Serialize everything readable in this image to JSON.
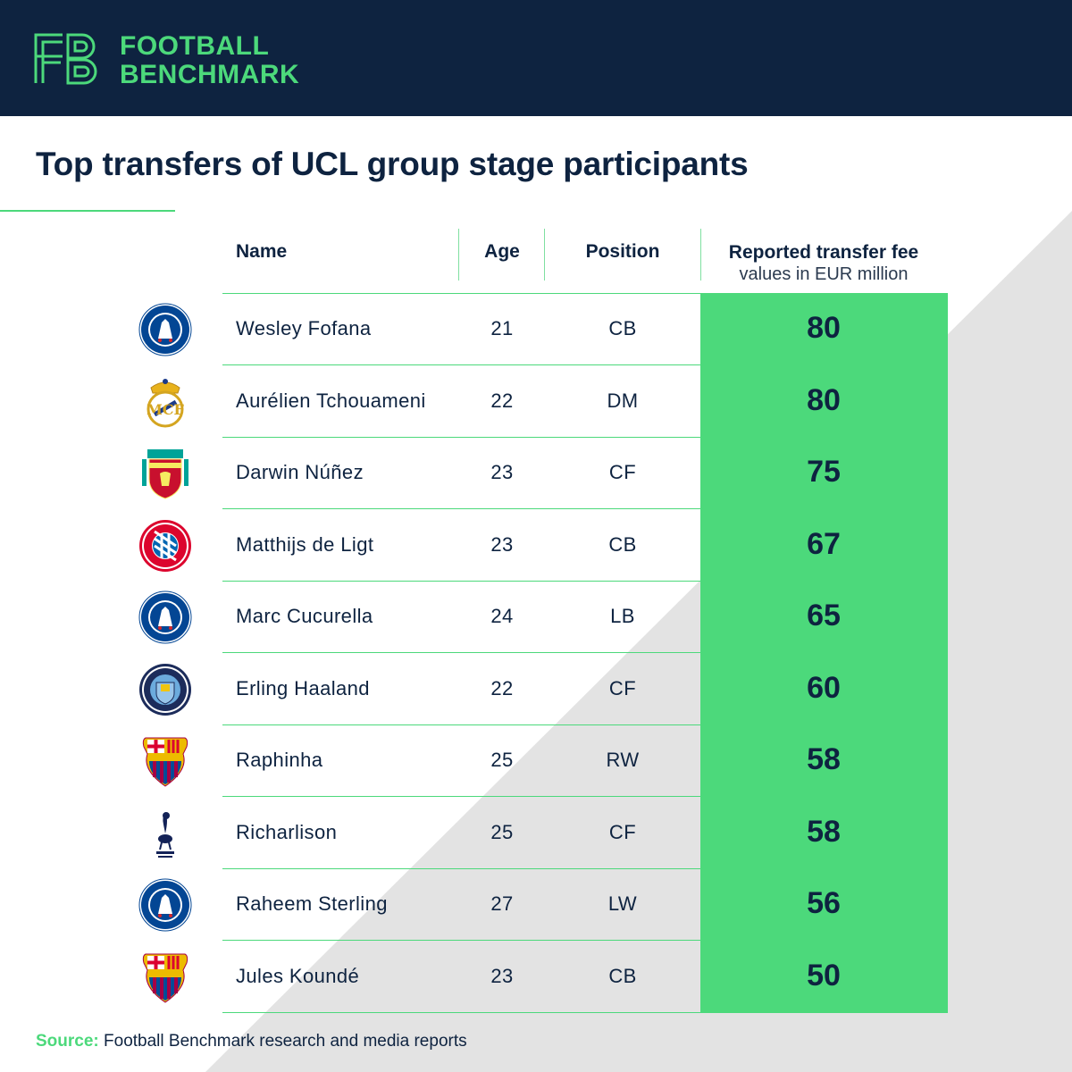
{
  "brand": {
    "line1": "FOOTBALL",
    "line2": "BENCHMARK",
    "accent_color": "#4cd97b",
    "header_bg": "#0e2340"
  },
  "title": "Top transfers of UCL group stage participants",
  "columns": {
    "name": "Name",
    "age": "Age",
    "position": "Position",
    "fee_title": "Reported transfer fee",
    "fee_subtitle": "values in EUR million"
  },
  "rows": [
    {
      "club_icon": "chelsea-crest-icon",
      "name": "Wesley Fofana",
      "age": "21",
      "position": "CB",
      "fee": "80"
    },
    {
      "club_icon": "real-madrid-crest-icon",
      "name": "Aurélien Tchouameni",
      "age": "22",
      "position": "DM",
      "fee": "80"
    },
    {
      "club_icon": "liverpool-crest-icon",
      "name": "Darwin Núñez",
      "age": "23",
      "position": "CF",
      "fee": "75"
    },
    {
      "club_icon": "bayern-crest-icon",
      "name": "Matthijs de Ligt",
      "age": "23",
      "position": "CB",
      "fee": "67"
    },
    {
      "club_icon": "chelsea-crest-icon",
      "name": "Marc Cucurella",
      "age": "24",
      "position": "LB",
      "fee": "65"
    },
    {
      "club_icon": "man-city-crest-icon",
      "name": "Erling Haaland",
      "age": "22",
      "position": "CF",
      "fee": "60"
    },
    {
      "club_icon": "barcelona-crest-icon",
      "name": "Raphinha",
      "age": "25",
      "position": "RW",
      "fee": "58"
    },
    {
      "club_icon": "tottenham-crest-icon",
      "name": "Richarlison",
      "age": "25",
      "position": "CF",
      "fee": "58"
    },
    {
      "club_icon": "chelsea-crest-icon",
      "name": "Raheem Sterling",
      "age": "27",
      "position": "LW",
      "fee": "56"
    },
    {
      "club_icon": "barcelona-crest-icon",
      "name": "Jules Koundé",
      "age": "23",
      "position": "CB",
      "fee": "50"
    }
  ],
  "source": {
    "label": "Source:",
    "text": " Football Benchmark research and media reports"
  }
}
